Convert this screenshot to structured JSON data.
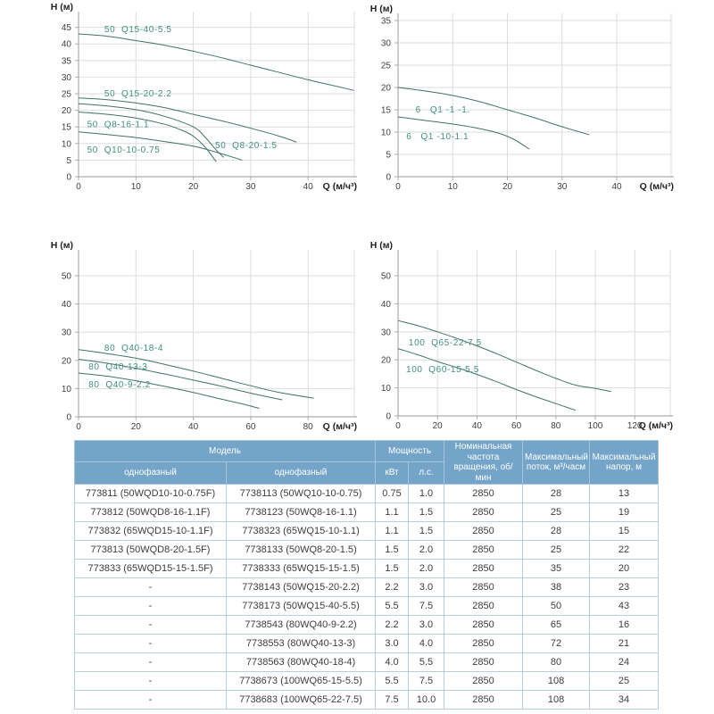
{
  "colors": {
    "curve": "#3f7268",
    "curve_label": "#3f8f7f",
    "grid": "#dadedb",
    "axis": "#a8aeac",
    "tick_text": "#3f3f3f",
    "axis_title": "#1f1f1f",
    "table_header_bg": "#74a4c8",
    "table_header_text": "#ffffff",
    "table_border": "#b8cfe0",
    "table_text": "#3c3c3c"
  },
  "chart_data": [
    {
      "type": "line",
      "title": "",
      "xlabel": "Q (м/ч³)",
      "ylabel": "H (м)",
      "x_ticks": [
        0,
        10,
        20,
        30,
        40
      ],
      "y_ticks": [
        0,
        5,
        10,
        15,
        20,
        25,
        30,
        35,
        40,
        45
      ],
      "xlim": [
        0,
        48
      ],
      "ylim": [
        0,
        49
      ],
      "grid": true,
      "legend_position": "inline-labels",
      "series": [
        {
          "name": "50  Q15-40-5.5",
          "label_pos": [
            4.5,
            44.5
          ],
          "points": [
            [
              0,
              43
            ],
            [
              5,
              42.3
            ],
            [
              10,
              41
            ],
            [
              15,
              39.6
            ],
            [
              20,
              37.8
            ],
            [
              25,
              35.8
            ],
            [
              30,
              33.6
            ],
            [
              35,
              31.4
            ],
            [
              40,
              29.2
            ],
            [
              44,
              27.6
            ],
            [
              48,
              26
            ]
          ]
        },
        {
          "name": "50  Q15-20-2.2",
          "label_pos": [
            4.5,
            25.2
          ],
          "points": [
            [
              0,
              23.7
            ],
            [
              5,
              23.2
            ],
            [
              10,
              22.2
            ],
            [
              15,
              20.8
            ],
            [
              20,
              18.8
            ],
            [
              25,
              16.8
            ],
            [
              30,
              14.6
            ],
            [
              35,
              12.2
            ],
            [
              38,
              10.4
            ]
          ]
        },
        {
          "name": "50  Q8-20-1.5",
          "label_pos": [
            23.8,
            9.5
          ],
          "points": [
            [
              0,
              22
            ],
            [
              5,
              21.3
            ],
            [
              10,
              20.2
            ],
            [
              15,
              18.2
            ],
            [
              20,
              15
            ],
            [
              22,
              12
            ],
            [
              24,
              8
            ],
            [
              25.3,
              5.8
            ]
          ]
        },
        {
          "name": "50  Q8-16-1.1",
          "label_pos": [
            1.5,
            15.8
          ],
          "points": [
            [
              0,
              19.5
            ],
            [
              5,
              18.8
            ],
            [
              10,
              17.7
            ],
            [
              15,
              15.8
            ],
            [
              18,
              14
            ],
            [
              20,
              12.2
            ],
            [
              22,
              9
            ],
            [
              24,
              4.5
            ]
          ]
        },
        {
          "name": "50  Q10-10-0.75",
          "label_pos": [
            1.5,
            8.2
          ],
          "points": [
            [
              0,
              13.5
            ],
            [
              5,
              12.7
            ],
            [
              10,
              11.8
            ],
            [
              15,
              10.6
            ],
            [
              20,
              9.2
            ],
            [
              24,
              7.4
            ],
            [
              28.5,
              5
            ]
          ]
        }
      ]
    },
    {
      "type": "line",
      "title": "",
      "xlabel": "Q (м/ч³)",
      "ylabel": "H (м)",
      "x_ticks": [
        0,
        10,
        20,
        30,
        40
      ],
      "y_ticks": [
        0,
        5,
        10,
        15,
        20,
        25,
        30,
        35
      ],
      "xlim": [
        0,
        50
      ],
      "ylim": [
        0,
        36.6
      ],
      "grid": true,
      "legend_position": "inline-labels",
      "series": [
        {
          "name": "6   Q1 -1 -1.",
          "label_pos": [
            3.2,
            15.1
          ],
          "points": [
            [
              0,
              20
            ],
            [
              5,
              19.2
            ],
            [
              10,
              18.2
            ],
            [
              15,
              16.8
            ],
            [
              20,
              15
            ],
            [
              25,
              13.2
            ],
            [
              30,
              11.2
            ],
            [
              35,
              9.4
            ]
          ]
        },
        {
          "name": "6   Q1 -10-1.1",
          "label_pos": [
            1.5,
            9.1
          ],
          "points": [
            [
              0,
              13.4
            ],
            [
              5,
              12.6
            ],
            [
              10,
              11.8
            ],
            [
              14,
              11
            ],
            [
              18,
              9.9
            ],
            [
              21,
              8.5
            ],
            [
              24,
              6.2
            ]
          ]
        }
      ]
    },
    {
      "type": "line",
      "title": "",
      "xlabel": "Q (м/ч³)",
      "ylabel": "H (м)",
      "x_ticks": [
        0,
        20,
        40,
        60,
        80
      ],
      "y_ticks": [
        0,
        10,
        20,
        30,
        40,
        50
      ],
      "xlim": [
        0,
        96
      ],
      "ylim": [
        0,
        59
      ],
      "grid": true,
      "legend_position": "inline-labels",
      "series": [
        {
          "name": "80  Q40-18-4",
          "label_pos": [
            9,
            24.5
          ],
          "points": [
            [
              0,
              23.8
            ],
            [
              10,
              22.4
            ],
            [
              20,
              20.8
            ],
            [
              30,
              18.6
            ],
            [
              40,
              16.2
            ],
            [
              50,
              13.6
            ],
            [
              60,
              11
            ],
            [
              70,
              8.6
            ],
            [
              82,
              6.6
            ]
          ]
        },
        {
          "name": "80  Q40-13-3",
          "label_pos": [
            3.5,
            17.9
          ],
          "points": [
            [
              0,
              20.4
            ],
            [
              10,
              19
            ],
            [
              20,
              17.2
            ],
            [
              30,
              15.2
            ],
            [
              40,
              13
            ],
            [
              50,
              10.8
            ],
            [
              60,
              8.4
            ],
            [
              71,
              6
            ]
          ]
        },
        {
          "name": "80  Q40-9-2.2",
          "label_pos": [
            3.5,
            11.6
          ],
          "points": [
            [
              0,
              15.5
            ],
            [
              10,
              14.4
            ],
            [
              20,
              12.8
            ],
            [
              30,
              10.8
            ],
            [
              40,
              8.6
            ],
            [
              50,
              6.2
            ],
            [
              57,
              4.6
            ],
            [
              63,
              3
            ]
          ]
        }
      ]
    },
    {
      "type": "line",
      "title": "",
      "xlabel": "Q (м/ч³)",
      "ylabel": "H (м)",
      "x_ticks": [
        0,
        20,
        40,
        60,
        80,
        100,
        120
      ],
      "y_ticks": [
        0,
        10,
        20,
        30,
        40,
        50
      ],
      "xlim": [
        0,
        138
      ],
      "ylim": [
        0,
        59
      ],
      "grid": true,
      "legend_position": "inline-labels",
      "series": [
        {
          "name": "100  Q65-22-7.5",
          "label_pos": [
            5.4,
            26.3
          ],
          "points": [
            [
              0,
              34
            ],
            [
              10,
              32.2
            ],
            [
              20,
              30
            ],
            [
              30,
              27.6
            ],
            [
              40,
              25
            ],
            [
              50,
              22.2
            ],
            [
              60,
              19.2
            ],
            [
              70,
              16.2
            ],
            [
              80,
              13.4
            ],
            [
              90,
              11
            ],
            [
              100,
              9.8
            ],
            [
              108,
              8.7
            ]
          ]
        },
        {
          "name": "100  Q60-15-5.5",
          "label_pos": [
            4.1,
            16.7
          ],
          "points": [
            [
              0,
              24
            ],
            [
              10,
              21.8
            ],
            [
              20,
              19.4
            ],
            [
              30,
              17.2
            ],
            [
              40,
              14.8
            ],
            [
              50,
              12.2
            ],
            [
              60,
              9.4
            ],
            [
              70,
              6.8
            ],
            [
              80,
              4.4
            ],
            [
              90,
              2
            ]
          ]
        }
      ]
    }
  ],
  "table": {
    "header": {
      "model": "Модель",
      "single_phase_1": "однофазный",
      "single_phase_2": "однофазный",
      "power": "Мощность",
      "kw": "кВт",
      "hp": "л.с.",
      "speed": "Номинальная частота вращения, об/мин",
      "max_flow": "Максимальный поток, м³/часм",
      "max_head": "Максимальный напор, м"
    },
    "rows": [
      [
        "773811 (50WQD10-10-0.75F)",
        "7738113 (50WQ10-10-0.75)",
        "0.75",
        "1.0",
        "2850",
        "28",
        "13"
      ],
      [
        "773812 (50WQD8-16-1.1F)",
        "7738123 (50WQ8-16-1.1)",
        "1.1",
        "1.5",
        "2850",
        "25",
        "19"
      ],
      [
        "773832 (65WQD15-10-1.1F)",
        "7738323 (65WQ15-10-1.1)",
        "1.1",
        "1.5",
        "2850",
        "28",
        "15"
      ],
      [
        "773813 (50WQD8-20-1.5F)",
        "7738133 (50WQ8-20-1.5)",
        "1.5",
        "2.0",
        "2850",
        "25",
        "22"
      ],
      [
        "773833 (65WQD15-15-1.5F)",
        "7738333 (65WQ15-15-1.5)",
        "1.5",
        "2.0",
        "2850",
        "35",
        "20"
      ],
      [
        "-",
        "7738143 (50WQ15-20-2.2)",
        "2.2",
        "3.0",
        "2850",
        "38",
        "23"
      ],
      [
        "-",
        "7738173 (50WQ15-40-5.5)",
        "5.5",
        "7.5",
        "2850",
        "50",
        "43"
      ],
      [
        "-",
        "7738543 (80WQ40-9-2.2)",
        "2.2",
        "3.0",
        "2850",
        "65",
        "16"
      ],
      [
        "-",
        "7738553 (80WQ40-13-3)",
        "3.0",
        "4.0",
        "2850",
        "72",
        "21"
      ],
      [
        "-",
        "7738563 (80WQ40-18-4)",
        "4.0",
        "5.5",
        "2850",
        "80",
        "24"
      ],
      [
        "-",
        "7738673 (100WQ65-15-5.5)",
        "5.5",
        "7.5",
        "2850",
        "108",
        "25"
      ],
      [
        "-",
        "7738683 (100WQ65-22-7.5)",
        "7.5",
        "10.0",
        "2850",
        "108",
        "34"
      ]
    ]
  }
}
